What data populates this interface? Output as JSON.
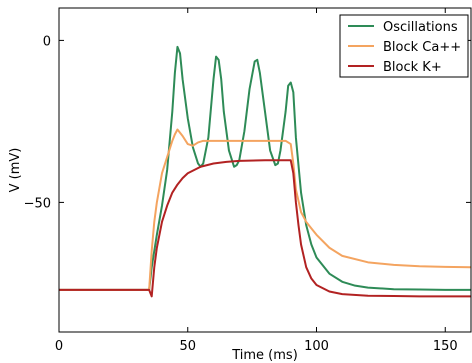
{
  "chart_data": {
    "type": "line",
    "xlabel": "Time (ms)",
    "ylabel": "V (mV)",
    "xlim": [
      0,
      160
    ],
    "ylim": [
      -90,
      10
    ],
    "xticks": [
      0,
      50,
      100,
      150
    ],
    "yticks": [
      0,
      -50
    ],
    "grid": false,
    "legend_position": "top-right",
    "series": [
      {
        "name": "Oscillations",
        "color": "#2e8b57",
        "x": [
          0,
          35,
          36,
          38,
          40,
          42,
          44,
          45,
          46,
          47,
          48,
          50,
          52,
          54,
          55,
          56,
          58,
          60,
          61,
          62,
          63,
          64,
          66,
          68,
          69,
          70,
          72,
          74,
          76,
          77,
          78,
          80,
          82,
          84,
          85,
          86,
          88,
          89,
          90,
          91,
          92,
          94,
          96,
          98,
          100,
          105,
          110,
          115,
          120,
          130,
          140,
          150,
          160
        ],
        "y": [
          -77,
          -77,
          -70,
          -60,
          -51,
          -40,
          -22,
          -10,
          -2,
          -4,
          -12,
          -24,
          -33,
          -38,
          -39,
          -38,
          -30,
          -12,
          -5,
          -6,
          -12,
          -22,
          -34,
          -39,
          -38.5,
          -37,
          -28,
          -15,
          -6.5,
          -6,
          -10,
          -22,
          -34,
          -38.5,
          -38,
          -34,
          -22,
          -14,
          -13,
          -16,
          -30,
          -47,
          -57,
          -63,
          -67,
          -72,
          -74.5,
          -75.7,
          -76.3,
          -76.8,
          -76.9,
          -77,
          -77
        ]
      },
      {
        "name": "Block Ca++",
        "color": "#f4a460",
        "x": [
          0,
          35,
          36,
          37,
          38,
          40,
          42,
          44,
          45,
          46,
          48,
          50,
          52,
          54,
          56,
          58,
          60,
          65,
          70,
          80,
          88,
          90,
          91,
          92,
          94,
          96,
          98,
          100,
          105,
          110,
          120,
          130,
          140,
          150,
          160
        ],
        "y": [
          -77,
          -77,
          -65,
          -56,
          -50,
          -41,
          -36,
          -31,
          -29,
          -27.5,
          -29.5,
          -32,
          -32.5,
          -31.5,
          -31,
          -31,
          -31,
          -31,
          -31,
          -31,
          -31,
          -32,
          -38,
          -46,
          -53,
          -56,
          -58,
          -60,
          -64,
          -66.5,
          -68.5,
          -69.3,
          -69.7,
          -69.9,
          -70
        ]
      },
      {
        "name": "Block K+",
        "color": "#b22222",
        "x": [
          0,
          35,
          36,
          37,
          38,
          40,
          42,
          44,
          46,
          48,
          50,
          55,
          60,
          65,
          70,
          80,
          90,
          91,
          92,
          93,
          94,
          96,
          98,
          100,
          105,
          110,
          120,
          130,
          140,
          150,
          160
        ],
        "y": [
          -77,
          -77,
          -79,
          -70,
          -64,
          -56,
          -51,
          -47,
          -44.5,
          -42.5,
          -41,
          -39,
          -38,
          -37.5,
          -37.2,
          -37,
          -37,
          -41,
          -50,
          -57,
          -63,
          -70,
          -73.5,
          -75.5,
          -77.5,
          -78.3,
          -78.8,
          -78.9,
          -79,
          -79,
          -79
        ]
      }
    ]
  }
}
